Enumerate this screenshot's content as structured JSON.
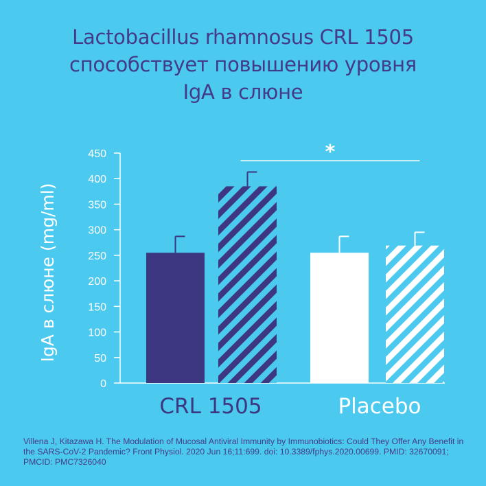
{
  "title": {
    "line1": "Lactobacillus rhamnosus CRL 1505",
    "line2": "способствует повышению уровня",
    "line3": "IgA в слюне"
  },
  "colors": {
    "background": "#4cc9ee",
    "dark_purple": "#3d3680",
    "white": "#ffffff",
    "title_text": "#443a8c"
  },
  "chart_data": {
    "type": "bar",
    "ylabel": "IgA в слюне (mg/ml)",
    "ylim": [
      0,
      450
    ],
    "yticks": [
      0,
      50,
      100,
      150,
      200,
      250,
      300,
      350,
      400,
      450
    ],
    "grid": false,
    "groups": [
      "CRL 1505",
      "Placebo"
    ],
    "bars": [
      {
        "group": "CRL 1505",
        "pattern": "solid",
        "color": "#3d3680",
        "value": 255,
        "error": 32
      },
      {
        "group": "CRL 1505",
        "pattern": "striped",
        "color": "#3d3680",
        "value": 385,
        "error": 28
      },
      {
        "group": "Placebo",
        "pattern": "solid",
        "color": "#ffffff",
        "value": 255,
        "error": 32
      },
      {
        "group": "Placebo",
        "pattern": "striped",
        "color": "#ffffff",
        "value": 269,
        "error": 26
      }
    ],
    "significance": {
      "label": "*",
      "from_bar": 1,
      "to_bar": 3,
      "y": 435
    }
  },
  "citation": "Villena J, Kitazawa H. The Modulation of Mucosal Antiviral Immunity by Immunobiotics: Could They Offer Any Benefit in the SARS-CoV-2 Pandemic? Front Physiol. 2020 Jun 16;11:699. doi: 10.3389/fphys.2020.00699. PMID: 32670091; PMCID: PMC7326040"
}
